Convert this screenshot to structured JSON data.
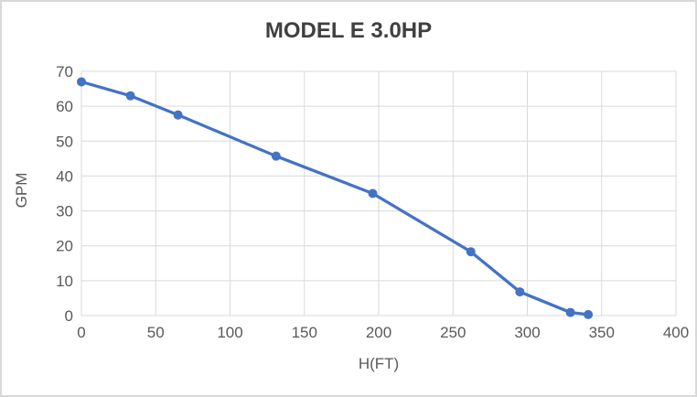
{
  "window": {
    "background": "#ffffff",
    "border_color": "#d9d9d9"
  },
  "chart_data": {
    "type": "line",
    "title": "MODEL E 3.0HP",
    "xlabel": "H(FT)",
    "ylabel": "GPM",
    "xlim": [
      0,
      400
    ],
    "ylim": [
      0,
      70
    ],
    "x_ticks": [
      0,
      50,
      100,
      150,
      200,
      250,
      300,
      350,
      400
    ],
    "y_ticks": [
      0,
      10,
      20,
      30,
      40,
      50,
      60,
      70
    ],
    "grid": true,
    "legend": "none",
    "series": [
      {
        "name": "MODEL E 3.0HP",
        "color": "#4472c4",
        "marker": "circle",
        "points": [
          {
            "x": 0,
            "y": 67
          },
          {
            "x": 33,
            "y": 63
          },
          {
            "x": 65,
            "y": 57.5
          },
          {
            "x": 131,
            "y": 45.7
          },
          {
            "x": 196,
            "y": 35
          },
          {
            "x": 262,
            "y": 18.3
          },
          {
            "x": 295,
            "y": 6.8
          },
          {
            "x": 329,
            "y": 0.9
          },
          {
            "x": 341,
            "y": 0.3
          }
        ]
      }
    ],
    "style": {
      "gridline_color": "#d9d9d9",
      "tick_label_color": "#595959",
      "title_color": "#404040",
      "line_width": 3.25,
      "marker_radius": 5
    }
  }
}
